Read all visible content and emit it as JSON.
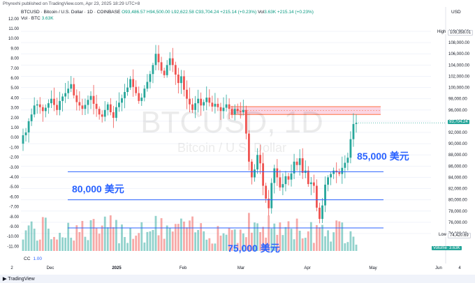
{
  "topline": "Phyrexhi published on TradingView.com, Apr 23, 2025 18:29 UTC+8",
  "header": {
    "symbol": "BTCUSD · Bitcoin / U.S. Dollar · 1D · COINBASE",
    "open": "O93,486.57",
    "high": "H94,500.00",
    "low": "L92,622.58",
    "close": "C93,704.24",
    "change": "+215.14 (+0.23%)",
    "vol_label": "Vol",
    "vol_value": "3.63K",
    "vol_change": "+215.14 (+0.23%)",
    "vol_row": "Vol · BTC",
    "vol_row_value": "3.63K"
  },
  "currency": "USD",
  "watermark": {
    "symbol": "BTCUSD, 1D",
    "name": "Bitcoin / U.S. Dollar"
  },
  "left_axis": [
    "11.00",
    "10.00",
    "9.00",
    "8.00",
    "7.00",
    "6.00",
    "5.00",
    "4.00",
    "3.00",
    "2.00",
    "1.00",
    "0.00",
    "-1.00",
    "-2.00",
    "-3.00",
    "-4.00",
    "-5.00",
    "-6.00",
    "-7.00",
    "-8.00",
    "-9.00",
    "-10.00",
    "-11.00"
  ],
  "left_axis_top": "12.00",
  "right_axis": [
    "110,000.00",
    "108,000.00",
    "106,000.00",
    "104,000.00",
    "102,000.00",
    "100,000.00",
    "98,000.00",
    "96,000.00",
    "94,000.00",
    "92,000.00",
    "90,000.00",
    "88,000.00",
    "86,000.00",
    "84,000.00",
    "82,000.00",
    "80,000.00",
    "78,000.00",
    "76,000.00",
    "74,000.00"
  ],
  "badges": {
    "high_label": "High",
    "high_value": "109,358.01",
    "last_value": "93,704.24",
    "low_label": "Low",
    "low_value": "74,420.69",
    "volume_label": "Volume",
    "volume_value": "3.63K"
  },
  "x_axis": [
    "2",
    "Dec",
    "2025",
    "Feb",
    "Mar",
    "Apr",
    "May",
    "Jun",
    "4"
  ],
  "annotations": {
    "a85k": "85,000 美元",
    "a80k": "80,000 美元",
    "a75k": "75,000 美元"
  },
  "cc": {
    "label": "CC",
    "value": "1.00"
  },
  "footer": "TradingView",
  "colors": {
    "up": "#26a69a",
    "down": "#ef5350",
    "line": "#2962ff",
    "zone": "#f8bbd0",
    "zone_border": "#ff7043"
  },
  "chart_data": {
    "type": "candlestick",
    "levels": [
      85000,
      80000,
      75000
    ],
    "resistance_zone": [
      95200,
      96600
    ],
    "ylim": [
      73000,
      111000
    ],
    "closes": [
      91500,
      92000,
      94000,
      95200,
      96800,
      97000,
      96500,
      95800,
      96400,
      97200,
      98000,
      96900,
      96000,
      97600,
      98400,
      99000,
      99800,
      100600,
      98600,
      97400,
      96800,
      96200,
      96900,
      97800,
      98500,
      97100,
      96200,
      95200,
      94800,
      96000,
      97000,
      95600,
      94600,
      96500,
      97300,
      98100,
      99200,
      100000,
      101500,
      100100,
      99000,
      97600,
      98200,
      99800,
      101000,
      102400,
      104000,
      106000,
      104500,
      103000,
      102200,
      104000,
      105200,
      104000,
      102300,
      100800,
      102000,
      99600,
      98000,
      97000,
      96000,
      97200,
      98000,
      96800,
      97400,
      98200,
      97300,
      96600,
      97100,
      96500,
      95800,
      96400,
      97000,
      96200,
      95200,
      96200,
      95800,
      95600,
      96000,
      91800,
      86800,
      84000,
      85400,
      88000,
      86500,
      82500,
      80200,
      78500,
      83000,
      85600,
      84000,
      82200,
      82800,
      84200,
      83600,
      84700,
      86800,
      86200,
      87400,
      84800,
      85200,
      82800,
      83100,
      82500,
      78600,
      76600,
      79000,
      82700,
      84000,
      84600,
      85200,
      84900,
      84600,
      85700,
      86600,
      87500,
      90800,
      93500,
      93704
    ]
  }
}
